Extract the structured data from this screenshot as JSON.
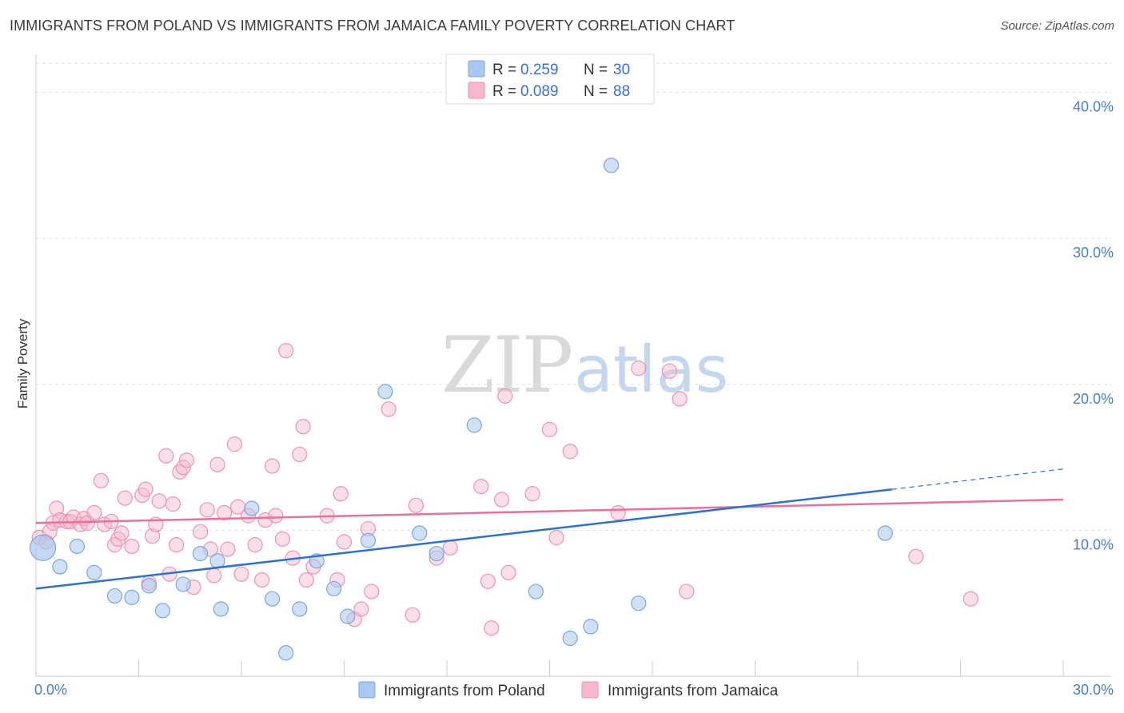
{
  "header": {
    "title": "IMMIGRANTS FROM POLAND VS IMMIGRANTS FROM JAMAICA FAMILY POVERTY CORRELATION CHART",
    "source": "Source: ZipAtlas.com"
  },
  "watermark": {
    "part1": "ZIP",
    "part2": "atlas"
  },
  "legend": {
    "r_label": "R =",
    "n_label": "N =",
    "poland": {
      "r": "0.259",
      "n": "30"
    },
    "jamaica": {
      "r": "0.089",
      "n": "88"
    }
  },
  "colors": {
    "poland_fill": "#a9c8f0",
    "poland_stroke": "#7aa6e0",
    "poland_line": "#2f6fd0",
    "jamaica_fill": "#f7b8cb",
    "jamaica_stroke": "#ee93b0",
    "jamaica_line": "#e8709a",
    "tick_text": "#4a7cc9"
  },
  "chart_data": {
    "type": "scatter",
    "title": "IMMIGRANTS FROM POLAND VS IMMIGRANTS FROM JAMAICA FAMILY POVERTY CORRELATION CHART",
    "xlabel": "",
    "ylabel": "Family Poverty",
    "xlim": [
      0,
      30
    ],
    "ylim": [
      0,
      42
    ],
    "x_tick_labels": [
      "0.0%",
      "30.0%"
    ],
    "y_ticks": [
      10,
      20,
      30,
      40
    ],
    "y_tick_labels": [
      "10.0%",
      "20.0%",
      "30.0%",
      "40.0%"
    ],
    "grid": true,
    "series": [
      {
        "name": "Immigrants from Poland",
        "r": 0.259,
        "n": 30,
        "trend": {
          "x0": 0,
          "y0": 6.0,
          "x1": 25.0,
          "y1": 12.8,
          "dashed_to_x": 30,
          "dashed_to_y": 14.2
        },
        "points": [
          [
            0.2,
            8.8,
            "big"
          ],
          [
            0.7,
            7.5
          ],
          [
            1.2,
            8.9
          ],
          [
            1.7,
            7.1
          ],
          [
            2.3,
            5.5
          ],
          [
            2.8,
            5.4
          ],
          [
            3.3,
            6.2
          ],
          [
            3.7,
            4.5
          ],
          [
            4.3,
            6.3
          ],
          [
            4.8,
            8.4
          ],
          [
            5.4,
            4.6
          ],
          [
            5.3,
            7.9
          ],
          [
            6.3,
            11.5
          ],
          [
            6.9,
            5.3
          ],
          [
            7.3,
            1.6
          ],
          [
            7.7,
            4.6
          ],
          [
            8.2,
            7.9
          ],
          [
            8.7,
            6.0
          ],
          [
            9.1,
            4.1
          ],
          [
            9.7,
            9.3
          ],
          [
            10.2,
            19.5
          ],
          [
            11.2,
            9.8
          ],
          [
            11.7,
            8.4
          ],
          [
            12.8,
            17.2
          ],
          [
            14.6,
            5.8
          ],
          [
            15.6,
            2.6
          ],
          [
            16.2,
            3.4
          ],
          [
            16.8,
            35.0
          ],
          [
            17.6,
            5.0
          ],
          [
            24.8,
            9.8
          ]
        ]
      },
      {
        "name": "Immigrants from Jamaica",
        "r": 0.089,
        "n": 88,
        "trend": {
          "x0": 0,
          "y0": 10.5,
          "x1": 30,
          "y1": 12.1
        },
        "points": [
          [
            0.1,
            9.5
          ],
          [
            0.3,
            9.2
          ],
          [
            0.4,
            9.9
          ],
          [
            0.5,
            10.5
          ],
          [
            0.6,
            11.5
          ],
          [
            0.7,
            10.7
          ],
          [
            0.9,
            10.6
          ],
          [
            1.0,
            10.6
          ],
          [
            1.1,
            10.9
          ],
          [
            1.3,
            10.4
          ],
          [
            1.4,
            10.8
          ],
          [
            1.5,
            10.5
          ],
          [
            1.7,
            11.2
          ],
          [
            1.9,
            13.4
          ],
          [
            2.0,
            10.4
          ],
          [
            2.2,
            10.6
          ],
          [
            2.3,
            9.0
          ],
          [
            2.4,
            9.4
          ],
          [
            2.5,
            9.8
          ],
          [
            2.6,
            12.2
          ],
          [
            2.8,
            8.9
          ],
          [
            3.1,
            12.4
          ],
          [
            3.2,
            12.8
          ],
          [
            3.3,
            6.4
          ],
          [
            3.4,
            9.6
          ],
          [
            3.5,
            10.4
          ],
          [
            3.6,
            12.0
          ],
          [
            3.8,
            15.1
          ],
          [
            3.9,
            7.0
          ],
          [
            4.0,
            11.8
          ],
          [
            4.1,
            9.0
          ],
          [
            4.2,
            14.0
          ],
          [
            4.3,
            14.3
          ],
          [
            4.4,
            14.8
          ],
          [
            4.6,
            6.1
          ],
          [
            4.8,
            9.9
          ],
          [
            5.0,
            11.4
          ],
          [
            5.1,
            8.7
          ],
          [
            5.2,
            6.9
          ],
          [
            5.3,
            14.5
          ],
          [
            5.5,
            11.2
          ],
          [
            5.6,
            8.7
          ],
          [
            5.8,
            15.9
          ],
          [
            5.9,
            11.6
          ],
          [
            6.0,
            7.0
          ],
          [
            6.2,
            11.0
          ],
          [
            6.4,
            9.0
          ],
          [
            6.6,
            6.6
          ],
          [
            6.7,
            10.7
          ],
          [
            6.9,
            14.4
          ],
          [
            7.0,
            11.0
          ],
          [
            7.2,
            9.4
          ],
          [
            7.3,
            22.3
          ],
          [
            7.5,
            8.1
          ],
          [
            7.7,
            15.2
          ],
          [
            7.8,
            17.1
          ],
          [
            7.9,
            6.6
          ],
          [
            8.1,
            7.5
          ],
          [
            8.5,
            11.0
          ],
          [
            8.8,
            6.6
          ],
          [
            8.9,
            12.5
          ],
          [
            9.0,
            9.2
          ],
          [
            9.3,
            3.9
          ],
          [
            9.5,
            4.6
          ],
          [
            9.7,
            10.1
          ],
          [
            9.8,
            5.8
          ],
          [
            10.3,
            18.3
          ],
          [
            11.0,
            4.2
          ],
          [
            11.1,
            11.7
          ],
          [
            11.7,
            8.1
          ],
          [
            12.1,
            8.8
          ],
          [
            13.0,
            13.0
          ],
          [
            13.2,
            6.5
          ],
          [
            13.3,
            3.3
          ],
          [
            13.6,
            12.1
          ],
          [
            13.7,
            19.2
          ],
          [
            13.8,
            7.1
          ],
          [
            14.5,
            12.5
          ],
          [
            15.0,
            16.9
          ],
          [
            15.2,
            9.5
          ],
          [
            15.6,
            15.4
          ],
          [
            17.0,
            11.2
          ],
          [
            17.6,
            21.1
          ],
          [
            18.5,
            20.9
          ],
          [
            18.8,
            19.0
          ],
          [
            19.0,
            5.8
          ],
          [
            25.7,
            8.2
          ],
          [
            27.3,
            5.3
          ]
        ]
      }
    ]
  },
  "bottom_legend": {
    "poland": "Immigrants from Poland",
    "jamaica": "Immigrants from Jamaica"
  }
}
